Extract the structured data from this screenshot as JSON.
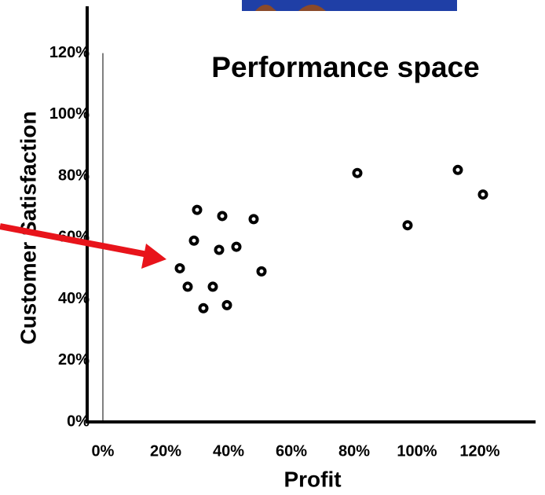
{
  "chart_data": {
    "type": "scatter",
    "title": "Performance space",
    "x_label": "Profit",
    "y_label": "Customer Satisfaction",
    "xlim": [
      -5,
      138
    ],
    "ylim": [
      0,
      135
    ],
    "xticks": [
      {
        "value": 0,
        "label": "0%"
      },
      {
        "value": 20,
        "label": "20%"
      },
      {
        "value": 40,
        "label": "40%"
      },
      {
        "value": 60,
        "label": "60%"
      },
      {
        "value": 80,
        "label": "80%"
      },
      {
        "value": 100,
        "label": "100%"
      },
      {
        "value": 120,
        "label": "120%"
      }
    ],
    "yticks": [
      {
        "value": 0,
        "label": "0%"
      },
      {
        "value": 20,
        "label": "20%"
      },
      {
        "value": 40,
        "label": "40%"
      },
      {
        "value": 60,
        "label": "60%"
      },
      {
        "value": 80,
        "label": "80%"
      },
      {
        "value": 100,
        "label": "100%"
      },
      {
        "value": 120,
        "label": "120%"
      }
    ],
    "series": [
      {
        "color": "#000000",
        "x": [
          30,
          38,
          48,
          29,
          37,
          42.5,
          24.5,
          50.5,
          27,
          35,
          39.5,
          32,
          81,
          97,
          113,
          121
        ],
        "values": [
          69,
          67,
          66,
          59,
          56,
          57,
          50,
          49,
          44,
          44,
          38,
          37,
          81,
          64,
          82,
          74
        ]
      }
    ]
  }
}
